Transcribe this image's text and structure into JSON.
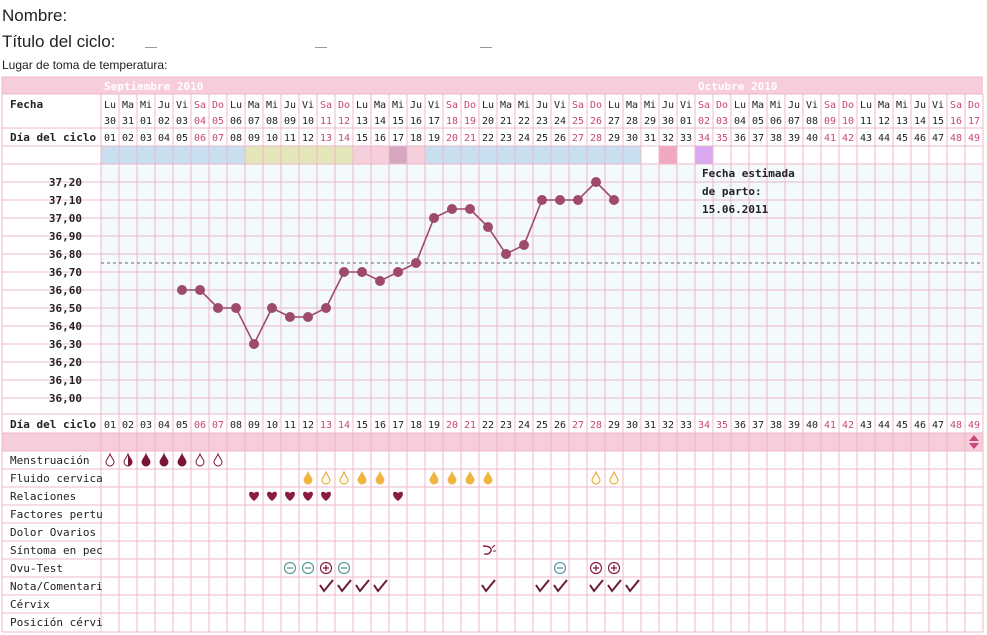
{
  "header": {
    "nombre_label": "Nombre:",
    "titulo_label": "Título del ciclo:",
    "lugar_label": "Lugar de toma de temperatura:"
  },
  "months": [
    "Septiembre 2010",
    "Octubre 2010"
  ],
  "row_labels": {
    "fecha": "Fecha",
    "dia_ciclo": "Día del ciclo"
  },
  "weekdays": [
    "Lu",
    "Ma",
    "Mi",
    "Ju",
    "Vi",
    "Sa",
    "Do",
    "Lu",
    "Ma",
    "Mi",
    "Ju",
    "Vi",
    "Sa",
    "Do",
    "Lu",
    "Ma",
    "Mi",
    "Ju",
    "Vi",
    "Sa",
    "Do",
    "Lu",
    "Ma",
    "Mi",
    "Ju",
    "Vi",
    "Sa",
    "Do",
    "Lu",
    "Ma",
    "Mi",
    "Ju",
    "Vi",
    "Sa",
    "Do",
    "Lu",
    "Ma",
    "Mi",
    "Ju",
    "Vi",
    "Sa",
    "Do",
    "Lu",
    "Ma",
    "Mi",
    "Ju",
    "Vi",
    "Sa",
    "Do"
  ],
  "dates": [
    "30",
    "31",
    "01",
    "02",
    "03",
    "04",
    "05",
    "06",
    "07",
    "08",
    "09",
    "10",
    "11",
    "12",
    "13",
    "14",
    "15",
    "16",
    "17",
    "18",
    "19",
    "20",
    "21",
    "22",
    "23",
    "24",
    "25",
    "26",
    "27",
    "28",
    "29",
    "30",
    "01",
    "02",
    "03",
    "04",
    "05",
    "06",
    "07",
    "08",
    "09",
    "10",
    "11",
    "12",
    "13",
    "14",
    "15",
    "16",
    "17"
  ],
  "cycle_days": [
    "01",
    "02",
    "03",
    "04",
    "05",
    "06",
    "07",
    "08",
    "09",
    "10",
    "11",
    "12",
    "13",
    "14",
    "15",
    "16",
    "17",
    "18",
    "19",
    "20",
    "21",
    "22",
    "23",
    "24",
    "25",
    "26",
    "27",
    "28",
    "29",
    "30",
    "31",
    "32",
    "33",
    "34",
    "35",
    "36",
    "37",
    "38",
    "39",
    "40",
    "41",
    "42",
    "43",
    "44",
    "45",
    "46",
    "47",
    "48",
    "49"
  ],
  "phase_colors": [
    "#c9dff0",
    "#c9dff0",
    "#c9dff0",
    "#c9dff0",
    "#c9dff0",
    "#c9dff0",
    "#c9dff0",
    "#c9dff0",
    "#e3e6b8",
    "#e3e6b8",
    "#e3e6b8",
    "#e3e6b8",
    "#e3e6b8",
    "#e3e6b8",
    "#f5cfdc",
    "#f5cfdc",
    "#d7a7bf",
    "#f5cfdc",
    "#c9dff0",
    "#c9dff0",
    "#c9dff0",
    "#c9dff0",
    "#c9dff0",
    "#c9dff0",
    "#c9dff0",
    "#c9dff0",
    "#c9dff0",
    "#c9dff0",
    "#c9dff0",
    "#c9dff0",
    "",
    "#f0a8c0",
    "",
    "#d9a8f0",
    "",
    "",
    "",
    "",
    "",
    "",
    "",
    "",
    "",
    "",
    "",
    "",
    "",
    "",
    ""
  ],
  "chart_data": {
    "type": "line",
    "ylabel": "",
    "y_ticks": [
      "37,20",
      "37,10",
      "37,00",
      "36,90",
      "36,80",
      "36,70",
      "36,60",
      "36,50",
      "36,40",
      "36,30",
      "36,20",
      "36,10",
      "36,00"
    ],
    "ylim": [
      35.95,
      37.25
    ],
    "coverline": 36.75,
    "x": [
      5,
      6,
      7,
      8,
      9,
      10,
      11,
      12,
      13,
      14,
      15,
      16,
      17,
      18,
      19,
      20,
      21,
      22,
      23,
      24,
      25,
      26,
      27,
      28,
      29
    ],
    "values": [
      36.6,
      36.6,
      36.5,
      36.5,
      36.3,
      36.5,
      36.45,
      36.45,
      36.5,
      36.7,
      36.7,
      36.65,
      36.7,
      36.75,
      37.0,
      37.05,
      37.05,
      36.95,
      36.8,
      36.85,
      37.1,
      37.1,
      37.1,
      37.2,
      37.1
    ],
    "line_color": "#9e4a6a"
  },
  "annotation": [
    "Fecha estimada",
    "de parto:",
    "15.06.2011"
  ],
  "symptom_labels": [
    "Menstruación",
    "Fluido cervica",
    "Relaciones",
    "Factores pertu",
    "Dolor Ovarios",
    "Síntoma en pec",
    "Ovu-Test",
    "Nota/Comentari",
    "Cérvix",
    "Posición cérvi"
  ],
  "symptoms": {
    "menstruacion": [
      {
        "day": 1,
        "k": "drop-outline"
      },
      {
        "day": 2,
        "k": "drop-half"
      },
      {
        "day": 3,
        "k": "drop"
      },
      {
        "day": 4,
        "k": "drop"
      },
      {
        "day": 5,
        "k": "drop"
      },
      {
        "day": 6,
        "k": "drop-outline"
      },
      {
        "day": 7,
        "k": "drop-outline"
      }
    ],
    "fluido": [
      {
        "day": 12,
        "k": "fluid"
      },
      {
        "day": 13,
        "k": "fluid-outline"
      },
      {
        "day": 14,
        "k": "fluid-outline"
      },
      {
        "day": 15,
        "k": "fluid"
      },
      {
        "day": 16,
        "k": "fluid"
      },
      {
        "day": 19,
        "k": "fluid"
      },
      {
        "day": 20,
        "k": "fluid"
      },
      {
        "day": 21,
        "k": "fluid"
      },
      {
        "day": 22,
        "k": "fluid"
      },
      {
        "day": 28,
        "k": "fluid-outline"
      },
      {
        "day": 29,
        "k": "fluid-outline"
      }
    ],
    "relaciones": [
      9,
      10,
      11,
      12,
      13,
      17
    ],
    "sintoma": [
      22
    ],
    "ovu_test": [
      {
        "day": 11,
        "k": "minus"
      },
      {
        "day": 12,
        "k": "minus"
      },
      {
        "day": 13,
        "k": "plus"
      },
      {
        "day": 14,
        "k": "minus"
      },
      {
        "day": 26,
        "k": "minus"
      },
      {
        "day": 28,
        "k": "plus"
      },
      {
        "day": 29,
        "k": "plus"
      }
    ],
    "notas": [
      13,
      14,
      15,
      16,
      22,
      25,
      26,
      28,
      29,
      30
    ]
  },
  "colors": {
    "grid": "#ecb8c8",
    "header_pink": "#f7cdd9",
    "weekend_text": "#c8457a",
    "month_text": "#ffffff",
    "plot_bg": "#f4f9fb",
    "heart": "#8a1c3c",
    "drop_dark": "#7a1535",
    "fluid": "#f0b440"
  }
}
